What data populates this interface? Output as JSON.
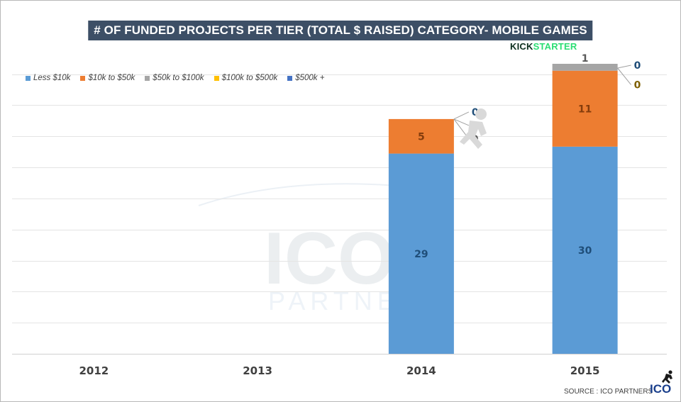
{
  "title": "# OF FUNDED PROJECTS PER TIER (TOTAL $ RAISED) CATEGORY- MOBILE GAMES",
  "brand": {
    "part1": "KICK",
    "part2": "STARTER"
  },
  "source": "SOURCE : ICO PARTNERS",
  "logo_text": "ICO",
  "watermark": {
    "line1": "ICO",
    "line2": "PARTNERS"
  },
  "chart_data": {
    "type": "bar",
    "stacked": true,
    "categories": [
      "2012",
      "2013",
      "2014",
      "2015"
    ],
    "series": [
      {
        "name": "Less $10k",
        "color": "#5b9bd5",
        "label_color": "#1f4e79",
        "values": [
          0,
          0,
          29,
          30
        ]
      },
      {
        "name": "$10k to $50k",
        "color": "#ed7d31",
        "label_color": "#843c0c",
        "values": [
          0,
          0,
          5,
          11
        ]
      },
      {
        "name": "$50k to $100k",
        "color": "#a5a5a5",
        "label_color": "#595959",
        "values": [
          0,
          0,
          0,
          1
        ]
      },
      {
        "name": "$100k to $500k",
        "color": "#ffc000",
        "label_color": "#7f6000",
        "values": [
          0,
          0,
          0,
          0
        ]
      },
      {
        "name": "$500k +",
        "color": "#4472c4",
        "label_color": "#1f4e79",
        "values": [
          0,
          0,
          0,
          0
        ]
      }
    ],
    "ylim": [
      0,
      42
    ],
    "grid": true,
    "legend_position": "top-left"
  }
}
